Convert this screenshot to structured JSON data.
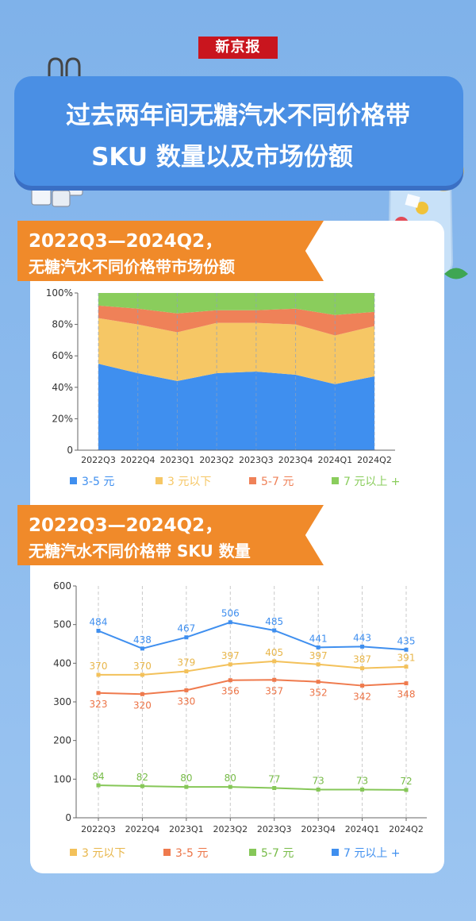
{
  "brand": "新京报",
  "title_line1": "过去两年间无糖汽水不同价格带",
  "title_line2": "SKU 数量以及市场份额",
  "section1": {
    "line1": "2022Q3—2024Q2，",
    "line2": "无糖汽水不同价格带市场份额"
  },
  "section2": {
    "line1": "2022Q3—2024Q2，",
    "line2": "无糖汽水不同价格带 SKU 数量"
  },
  "chart_data": [
    {
      "type": "area",
      "stacked": true,
      "categories": [
        "2022Q3",
        "2022Q4",
        "2023Q1",
        "2023Q2",
        "2023Q3",
        "2023Q4",
        "2024Q1",
        "2024Q2"
      ],
      "y_ticks": [
        "0",
        "20%",
        "40%",
        "60%",
        "80%",
        "100%"
      ],
      "ylim": [
        0,
        100
      ],
      "series": [
        {
          "name": "3-5 元",
          "color": "#3f8fef",
          "values": [
            55,
            49,
            44,
            49,
            50,
            48,
            42,
            47
          ]
        },
        {
          "name": "3 元以下",
          "color": "#f6c765",
          "values": [
            29,
            31,
            31,
            32,
            31,
            32,
            31,
            32
          ]
        },
        {
          "name": "5-7 元",
          "color": "#ef8158",
          "values": [
            8,
            10,
            12,
            8,
            8,
            10,
            13,
            9
          ]
        },
        {
          "name": "7 元以上 +",
          "color": "#8acd5c",
          "values": [
            8,
            10,
            13,
            11,
            11,
            10,
            14,
            12
          ]
        }
      ]
    },
    {
      "type": "line",
      "categories": [
        "2022Q3",
        "2022Q4",
        "2023Q1",
        "2023Q2",
        "2023Q3",
        "2023Q4",
        "2024Q1",
        "2024Q2"
      ],
      "y_ticks": [
        "0",
        "100",
        "200",
        "300",
        "400",
        "500",
        "600"
      ],
      "ylim": [
        0,
        600
      ],
      "series": [
        {
          "name": "3 元以下",
          "color": "#f3c15a",
          "label_color": "#e8b64a",
          "values": [
            370,
            370,
            379,
            397,
            405,
            397,
            387,
            391
          ]
        },
        {
          "name": "3-5 元",
          "color": "#ef7a4d",
          "label_color": "#ec7447",
          "values": [
            323,
            320,
            330,
            356,
            357,
            352,
            342,
            348
          ]
        },
        {
          "name": "5-7 元",
          "color": "#86c758",
          "label_color": "#77bb48",
          "values": [
            84,
            82,
            80,
            80,
            77,
            73,
            73,
            72
          ]
        },
        {
          "name": "7 元以上 +",
          "color": "#3f8fef",
          "label_color": "#3f8fef",
          "values": [
            484,
            438,
            467,
            506,
            485,
            441,
            443,
            435
          ]
        }
      ]
    }
  ]
}
